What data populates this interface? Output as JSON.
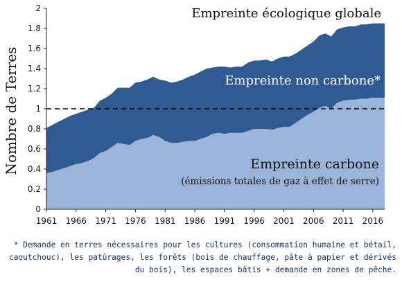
{
  "chart_data": {
    "type": "area",
    "stacked": true,
    "ylabel": "Nombre de Terres",
    "ylim": [
      0,
      2
    ],
    "yticks": [
      "0",
      "0.2",
      "0.4",
      "0.6",
      "0.8",
      "1",
      "1.2",
      "1.4",
      "1.6",
      "1.8",
      "2"
    ],
    "xlim": [
      1961,
      2018
    ],
    "xticks": [
      "1961",
      "1966",
      "1971",
      "1976",
      "1981",
      "1986",
      "1991",
      "1996",
      "2001",
      "2006",
      "2011",
      "2016"
    ],
    "x": [
      1961,
      1962,
      1963,
      1964,
      1965,
      1966,
      1967,
      1968,
      1969,
      1970,
      1971,
      1972,
      1973,
      1974,
      1975,
      1976,
      1977,
      1978,
      1979,
      1980,
      1981,
      1982,
      1983,
      1984,
      1985,
      1986,
      1987,
      1988,
      1989,
      1990,
      1991,
      1992,
      1993,
      1994,
      1995,
      1996,
      1997,
      1998,
      1999,
      2000,
      2001,
      2002,
      2003,
      2004,
      2005,
      2006,
      2007,
      2008,
      2009,
      2010,
      2011,
      2012,
      2013,
      2014,
      2015,
      2016,
      2017,
      2018
    ],
    "series": [
      {
        "name": "Empreinte carbone",
        "color": "#9ab5d9",
        "values": [
          0.36,
          0.37,
          0.39,
          0.41,
          0.43,
          0.45,
          0.46,
          0.48,
          0.51,
          0.56,
          0.58,
          0.62,
          0.66,
          0.65,
          0.64,
          0.68,
          0.7,
          0.71,
          0.74,
          0.72,
          0.68,
          0.66,
          0.66,
          0.67,
          0.68,
          0.68,
          0.7,
          0.72,
          0.75,
          0.76,
          0.75,
          0.76,
          0.76,
          0.76,
          0.78,
          0.8,
          0.8,
          0.8,
          0.79,
          0.81,
          0.82,
          0.82,
          0.86,
          0.9,
          0.94,
          0.97,
          1.01,
          1.03,
          1.0,
          1.06,
          1.08,
          1.09,
          1.09,
          1.1,
          1.1,
          1.11,
          1.11,
          1.11
        ]
      },
      {
        "name": "Empreinte non carbone*",
        "color": "#2f5a92",
        "values": [
          0.45,
          0.47,
          0.48,
          0.49,
          0.5,
          0.5,
          0.51,
          0.51,
          0.5,
          0.52,
          0.53,
          0.53,
          0.55,
          0.56,
          0.57,
          0.58,
          0.57,
          0.58,
          0.58,
          0.57,
          0.6,
          0.6,
          0.61,
          0.62,
          0.64,
          0.66,
          0.67,
          0.68,
          0.66,
          0.66,
          0.67,
          0.65,
          0.66,
          0.66,
          0.68,
          0.68,
          0.68,
          0.69,
          0.68,
          0.69,
          0.7,
          0.7,
          0.69,
          0.69,
          0.69,
          0.7,
          0.72,
          0.72,
          0.72,
          0.73,
          0.73,
          0.73,
          0.73,
          0.74,
          0.74,
          0.74,
          0.74,
          0.74
        ]
      }
    ],
    "reference_line": {
      "y": 1,
      "style": "dashed"
    },
    "annotations": {
      "total": "Empreinte écologique globale",
      "non_carbon": "Empreinte non carbone*",
      "carbon": "Empreinte carbone",
      "carbon_sub": "(émissions totales de gaz à effet de serre)"
    },
    "footnote": "* Demande en terres nécessaires pour les cultures (consommation humaine et bétail, caoutchouc), les patûrages, les forêts (bois de chauffage, pâte à papier et dérivés du bois), les espaces bâtis + demande en zones de pêche."
  }
}
